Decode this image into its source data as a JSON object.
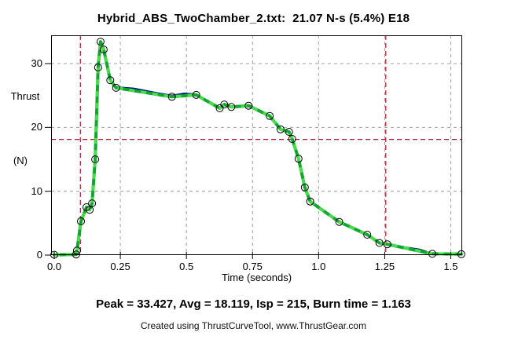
{
  "title": "Hybrid_ABS_TwoChamber_2.txt:  21.07 N-s (5.4%) E18",
  "stats_line": "Peak = 33.427, Avg = 18.119, Isp = 215, Burn time = 1.163",
  "footer": "Created using ThrustCurveTool, www.ThrustGear.com",
  "colors": {
    "green_dark": "#0fa730",
    "green_light": "#4adb4a",
    "navy": "#00128a",
    "red": "#b5142b",
    "grid": "#a0a0a0",
    "axis": "#000000",
    "marker": "#000000"
  },
  "chart_data": {
    "type": "line",
    "title": "Hybrid_ABS_TwoChamber_2.txt:  21.07 N-s (5.4%) E18",
    "xlabel": "Time (seconds)",
    "ylabel_lines": [
      "Thrust",
      "(N)"
    ],
    "xlim": [
      0,
      1.543
    ],
    "ylim": [
      0,
      34.4
    ],
    "xticks": [
      0.0,
      0.25,
      0.5,
      0.75,
      1.0,
      1.25,
      1.5
    ],
    "xtick_labels": [
      "0.0",
      "0.25",
      "0.5",
      "0.75",
      "1.0",
      "1.25",
      "1.5"
    ],
    "yticks": [
      0,
      10,
      20,
      30
    ],
    "ytick_labels": [
      "0",
      "10",
      "20",
      "30"
    ],
    "grid": true,
    "legend": "none",
    "reference_lines": {
      "avg_thrust_y": 18.119,
      "burn_start_x": 0.099,
      "burn_end_x": 1.254
    },
    "stats": {
      "peak": 33.427,
      "avg": 18.119,
      "isp": 215,
      "burn_time": 1.163
    },
    "series": [
      {
        "name": "raw-thrust",
        "style": "navy-thin",
        "markers": false,
        "points": [
          [
            0.0,
            0.05
          ],
          [
            0.083,
            0.1
          ],
          [
            0.086,
            0.7
          ],
          [
            0.101,
            5.3
          ],
          [
            0.122,
            7.5
          ],
          [
            0.134,
            7.1
          ],
          [
            0.143,
            8.1
          ],
          [
            0.155,
            15.0
          ],
          [
            0.166,
            29.4
          ],
          [
            0.175,
            33.43
          ],
          [
            0.187,
            32.2
          ],
          [
            0.212,
            27.4
          ],
          [
            0.234,
            26.3
          ],
          [
            0.3,
            26.1
          ],
          [
            0.4,
            25.3
          ],
          [
            0.445,
            25.0
          ],
          [
            0.49,
            25.3
          ],
          [
            0.537,
            25.2
          ],
          [
            0.626,
            23.1
          ],
          [
            0.643,
            23.7
          ],
          [
            0.67,
            23.3
          ],
          [
            0.735,
            23.5
          ],
          [
            0.815,
            21.9
          ],
          [
            0.856,
            19.8
          ],
          [
            0.888,
            19.4
          ],
          [
            0.9,
            18.3
          ],
          [
            0.924,
            15.2
          ],
          [
            0.948,
            10.7
          ],
          [
            0.968,
            8.5
          ],
          [
            1.078,
            5.3
          ],
          [
            1.184,
            3.25
          ],
          [
            1.23,
            1.95
          ],
          [
            1.26,
            1.75
          ],
          [
            1.33,
            1.2
          ],
          [
            1.38,
            0.9
          ],
          [
            1.43,
            0.25
          ],
          [
            1.54,
            0.18
          ]
        ]
      },
      {
        "name": "smoothed-thrust",
        "style": "green-thick",
        "markers": true,
        "points": [
          [
            0.0,
            0.05
          ],
          [
            0.083,
            0.1
          ],
          [
            0.086,
            0.7
          ],
          [
            0.101,
            5.3
          ],
          [
            0.122,
            7.5
          ],
          [
            0.134,
            7.1
          ],
          [
            0.143,
            8.1
          ],
          [
            0.155,
            15.0
          ],
          [
            0.166,
            29.4
          ],
          [
            0.175,
            33.43
          ],
          [
            0.187,
            32.2
          ],
          [
            0.212,
            27.4
          ],
          [
            0.234,
            26.2
          ],
          [
            0.445,
            24.8
          ],
          [
            0.537,
            25.1
          ],
          [
            0.626,
            23.0
          ],
          [
            0.643,
            23.6
          ],
          [
            0.67,
            23.2
          ],
          [
            0.735,
            23.4
          ],
          [
            0.815,
            21.8
          ],
          [
            0.856,
            19.7
          ],
          [
            0.888,
            19.3
          ],
          [
            0.9,
            18.2
          ],
          [
            0.924,
            15.1
          ],
          [
            0.948,
            10.6
          ],
          [
            0.968,
            8.4
          ],
          [
            1.078,
            5.2
          ],
          [
            1.184,
            3.2
          ],
          [
            1.23,
            1.9
          ],
          [
            1.26,
            1.7
          ],
          [
            1.43,
            0.2
          ],
          [
            1.54,
            0.15
          ]
        ]
      }
    ]
  }
}
